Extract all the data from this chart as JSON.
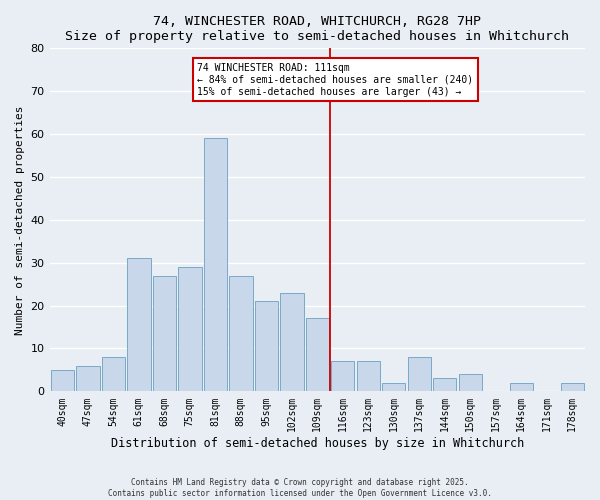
{
  "title": "74, WINCHESTER ROAD, WHITCHURCH, RG28 7HP",
  "subtitle": "Size of property relative to semi-detached houses in Whitchurch",
  "xlabel": "Distribution of semi-detached houses by size in Whitchurch",
  "ylabel": "Number of semi-detached properties",
  "bar_color": "#c8d8ea",
  "bar_edge_color": "#7aaac8",
  "categories": [
    "40sqm",
    "47sqm",
    "54sqm",
    "61sqm",
    "68sqm",
    "75sqm",
    "81sqm",
    "88sqm",
    "95sqm",
    "102sqm",
    "109sqm",
    "116sqm",
    "123sqm",
    "130sqm",
    "137sqm",
    "144sqm",
    "150sqm",
    "157sqm",
    "164sqm",
    "171sqm",
    "178sqm"
  ],
  "values": [
    5,
    6,
    8,
    31,
    27,
    29,
    59,
    27,
    21,
    23,
    17,
    7,
    7,
    2,
    8,
    3,
    4,
    0,
    2,
    0,
    2
  ],
  "vline_color": "#cc0000",
  "annotation_title": "74 WINCHESTER ROAD: 111sqm",
  "annotation_line1": "← 84% of semi-detached houses are smaller (240)",
  "annotation_line2": "15% of semi-detached houses are larger (43) →",
  "annotation_box_color": "#ffffff",
  "annotation_box_edge": "#cc0000",
  "ylim": [
    0,
    80
  ],
  "yticks": [
    0,
    10,
    20,
    30,
    40,
    50,
    60,
    70,
    80
  ],
  "footnote1": "Contains HM Land Registry data © Crown copyright and database right 2025.",
  "footnote2": "Contains public sector information licensed under the Open Government Licence v3.0.",
  "background_color": "#e8eef4",
  "grid_color": "#ffffff"
}
